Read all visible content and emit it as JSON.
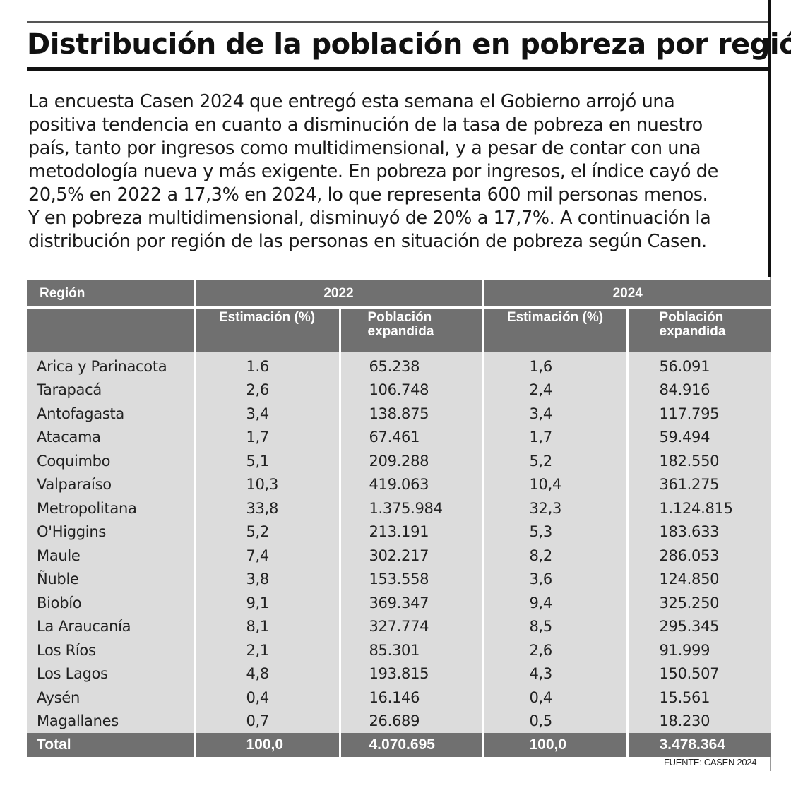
{
  "title": "Distribución de la población en pobreza por región",
  "intro_lines": [
    "La encuesta Casen 2024 que entregó esta semana el Gobierno arrojó una",
    "positiva tendencia en cuanto a disminución de la tasa de pobreza en nuestro",
    "país, tanto por ingresos como multidimensional, y a pesar de contar con una",
    "metodología nueva y más exigente. En pobreza por ingresos, el índice cayó de",
    "20,5% en 2022 a 17,3% en 2024, lo que representa 600 mil personas menos.",
    "Y en pobreza multidimensional, disminuyó de 20% a 17,7%. A continuación la",
    "distribución por región de las personas en situación de pobreza según Casen."
  ],
  "table": {
    "header": {
      "region": "Región",
      "year1": "2022",
      "year2": "2024",
      "est_label": "Estimación (%)",
      "pob_label_1": "Población",
      "pob_label_2": "expandida"
    },
    "rows": [
      [
        "Arica y Parinacota",
        "1.6",
        "65.238",
        "1,6",
        "56.091"
      ],
      [
        "Tarapacá",
        "2,6",
        "106.748",
        "2,4",
        "84.916"
      ],
      [
        "Antofagasta",
        "3,4",
        "138.875",
        "3,4",
        "117.795"
      ],
      [
        "Atacama",
        "1,7",
        "67.461",
        "1,7",
        "59.494"
      ],
      [
        "Coquimbo",
        "5,1",
        "209.288",
        "5,2",
        "182.550"
      ],
      [
        "Valparaíso",
        "10,3",
        "419.063",
        "10,4",
        "361.275"
      ],
      [
        "Metropolitana",
        "33,8",
        "1.375.984",
        "32,3",
        "1.124.815"
      ],
      [
        "O'Higgins",
        "5,2",
        "213.191",
        "5,3",
        "183.633"
      ],
      [
        "Maule",
        "7,4",
        "302.217",
        "8,2",
        "286.053"
      ],
      [
        "Ñuble",
        "3,8",
        "153.558",
        "3,6",
        "124.850"
      ],
      [
        "Biobío",
        "9,1",
        "369.347",
        "9,4",
        "325.250"
      ],
      [
        "La Araucanía",
        "8,1",
        "327.774",
        "8,5",
        "295.345"
      ],
      [
        "Los Ríos",
        "2,1",
        "85.301",
        "2,6",
        "91.999"
      ],
      [
        "Los Lagos",
        "4,8",
        "193.815",
        "4,3",
        "150.507"
      ],
      [
        "Aysén",
        "0,4",
        "16.146",
        "0,4",
        "15.561"
      ],
      [
        "Magallanes",
        "0,7",
        "26.689",
        "0,5",
        "18.230"
      ]
    ],
    "total": [
      "Total",
      "100,0",
      "4.070.695",
      "100,0",
      "3.478.364"
    ]
  },
  "source": "FUENTE: CASEN 2024",
  "colors": {
    "header_bg": "#707070",
    "row_bg": "#dcdcdc",
    "text": "#1a1a1a"
  }
}
